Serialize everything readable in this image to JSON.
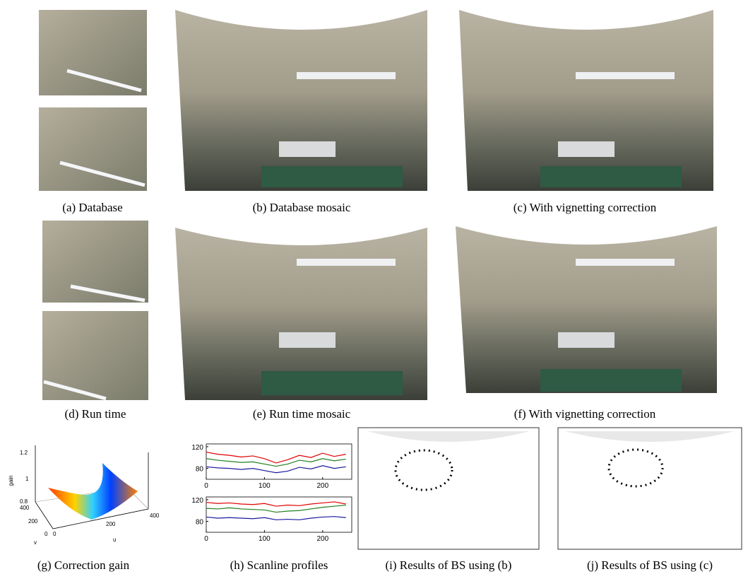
{
  "panels": [
    {
      "caption": "(a) Database"
    },
    {
      "caption": "(b) Database mosaic"
    },
    {
      "caption": "(c) With vignetting correction"
    },
    {
      "caption": "(d) Run time"
    },
    {
      "caption": "(e) Run time mosaic"
    },
    {
      "caption": "(f) With vignetting correction"
    },
    {
      "caption": "(g) Correction gain"
    },
    {
      "caption": "(h) Scanline profiles"
    },
    {
      "caption": "(i) Results of BS using (b)"
    },
    {
      "caption": "(j) Results of BS using (c)"
    }
  ],
  "gain_plot": {
    "zlabel": "gain",
    "xlabel": "u",
    "ylabel": "v",
    "zticks": [
      "1.2",
      "1",
      "0.8"
    ],
    "yticks": [
      "400",
      "200",
      "0"
    ],
    "xticks": [
      "0",
      "200",
      "400"
    ]
  },
  "scanline_plots": [
    {
      "x": [
        0,
        20,
        40,
        60,
        80,
        100,
        120,
        140,
        160,
        180,
        200,
        220,
        240
      ],
      "xlim": [
        0,
        250
      ],
      "xticks": [
        0,
        100,
        200
      ],
      "ylim": [
        60,
        125
      ],
      "yticks": [
        80,
        120
      ],
      "series": [
        {
          "color": "#e00000",
          "values": [
            110,
            106,
            104,
            101,
            103,
            98,
            90,
            96,
            104,
            100,
            108,
            102,
            106
          ]
        },
        {
          "color": "#208020",
          "values": [
            98,
            95,
            93,
            91,
            92,
            88,
            84,
            88,
            95,
            92,
            98,
            94,
            97
          ]
        },
        {
          "color": "#1a1aa0",
          "values": [
            83,
            81,
            80,
            78,
            80,
            76,
            72,
            75,
            82,
            79,
            85,
            80,
            83
          ]
        }
      ]
    },
    {
      "x": [
        0,
        20,
        40,
        60,
        80,
        100,
        120,
        140,
        160,
        180,
        200,
        220,
        240
      ],
      "xlim": [
        0,
        250
      ],
      "xticks": [
        0,
        100,
        200
      ],
      "ylim": [
        60,
        125
      ],
      "yticks": [
        80,
        120
      ],
      "series": [
        {
          "color": "#e00000",
          "values": [
            115,
            113,
            114,
            112,
            111,
            113,
            108,
            110,
            109,
            112,
            114,
            116,
            112
          ]
        },
        {
          "color": "#208020",
          "values": [
            104,
            103,
            105,
            103,
            102,
            101,
            97,
            99,
            100,
            103,
            106,
            108,
            110
          ]
        },
        {
          "color": "#1a1aa0",
          "values": [
            88,
            86,
            87,
            86,
            85,
            87,
            83,
            84,
            83,
            86,
            88,
            89,
            87
          ]
        }
      ]
    }
  ]
}
